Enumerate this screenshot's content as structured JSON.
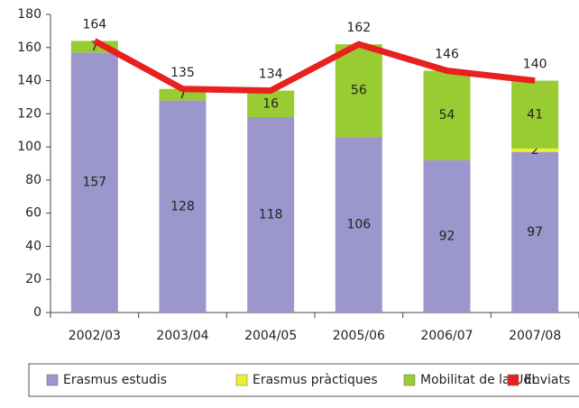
{
  "chart_data": {
    "type": "bar",
    "categories": [
      "2002/03",
      "2003/04",
      "2004/05",
      "2005/06",
      "2006/07",
      "2007/08"
    ],
    "series": [
      {
        "name": "Erasmus estudis",
        "color": "#9b97cc",
        "values": [
          157,
          128,
          118,
          106,
          92,
          97
        ]
      },
      {
        "name": "Erasmus pràctiques",
        "color": "#eeee33",
        "values": [
          0,
          0,
          0,
          0,
          0,
          2
        ]
      },
      {
        "name": "Mobilitat de la UdL",
        "color": "#99cc33",
        "values": [
          7,
          7,
          16,
          56,
          54,
          41
        ]
      },
      {
        "name": "Enviats",
        "color": "#e8201f",
        "type": "line",
        "values": [
          164,
          135,
          134,
          162,
          146,
          140
        ]
      }
    ],
    "stacked": true,
    "ylim": [
      0,
      180
    ],
    "yticks": [
      0,
      20,
      40,
      60,
      80,
      100,
      120,
      140,
      160,
      180
    ],
    "legend": "bottom"
  }
}
